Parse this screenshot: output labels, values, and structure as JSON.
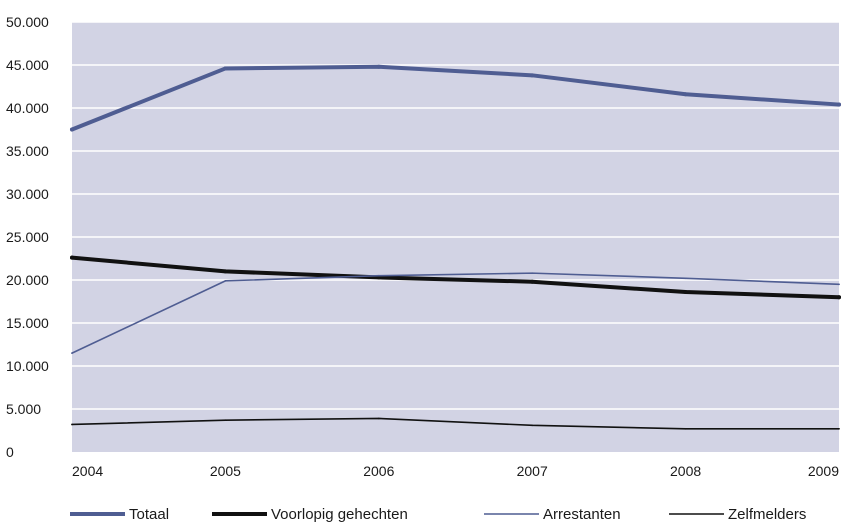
{
  "chart_data": {
    "type": "line",
    "title": "",
    "xlabel": "",
    "ylabel": "",
    "x": [
      "2004",
      "2005",
      "2006",
      "2007",
      "2008",
      "2009"
    ],
    "ylim": [
      0,
      50000
    ],
    "yticks": [
      0,
      5000,
      10000,
      15000,
      20000,
      25000,
      30000,
      35000,
      40000,
      45000,
      50000
    ],
    "ytick_labels": [
      "0",
      "5.000",
      "10.000",
      "15.000",
      "20.000",
      "25.000",
      "30.000",
      "35.000",
      "40.000",
      "45.000",
      "50.000"
    ],
    "grid": "horizontal",
    "plot_background": "#d2d3e4",
    "legend_position": "bottom",
    "series": [
      {
        "name": "Totaal",
        "values": [
          37500,
          44600,
          44800,
          43800,
          41600,
          40400
        ],
        "color": "#4f5d92",
        "style": "thick"
      },
      {
        "name": "Voorlopig gehechten",
        "values": [
          22600,
          21000,
          20300,
          19800,
          18600,
          18000
        ],
        "color": "#111111",
        "style": "thick"
      },
      {
        "name": "Arrestanten",
        "values": [
          11500,
          19900,
          20500,
          20800,
          20200,
          19500
        ],
        "color": "#4f5d92",
        "style": "thin"
      },
      {
        "name": "Zelfmelders",
        "values": [
          3200,
          3700,
          3900,
          3100,
          2700,
          2700
        ],
        "color": "#111111",
        "style": "thin"
      }
    ]
  }
}
